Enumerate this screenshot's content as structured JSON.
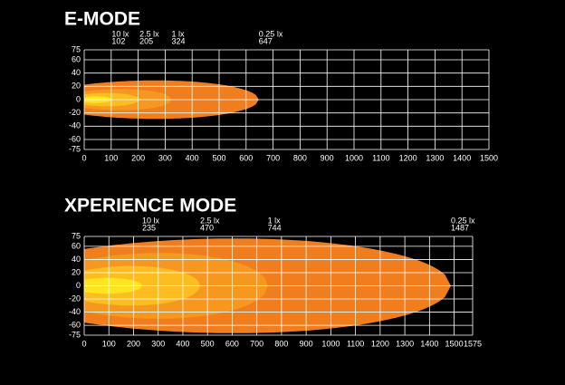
{
  "chart_data": [
    {
      "type": "area",
      "title": "E-MODE",
      "xlim": [
        0,
        1500
      ],
      "xticks": [
        0,
        100,
        200,
        300,
        400,
        500,
        600,
        700,
        800,
        900,
        1000,
        1100,
        1200,
        1300,
        1400,
        1500
      ],
      "ylim": [
        -75,
        75
      ],
      "yticks": [
        75,
        60,
        40,
        20,
        0,
        -20,
        -40,
        -60,
        -75
      ],
      "grid": true,
      "contours": [
        {
          "name": "0.25 lx",
          "reach": 647,
          "halfwidth": 29,
          "color": "#f07d1e"
        },
        {
          "name": "1 lx",
          "reach": 324,
          "halfwidth": 16,
          "color": "#f6981f"
        },
        {
          "name": "2.5 lx",
          "reach": 205,
          "halfwidth": 10,
          "color": "#fbbd20"
        },
        {
          "name": "10 lx",
          "reach": 102,
          "halfwidth": 5,
          "color": "#ffe51e"
        }
      ]
    },
    {
      "type": "area",
      "title": "XPERIENCE MODE",
      "xlim": [
        0,
        1575
      ],
      "xticks": [
        0,
        100,
        200,
        300,
        400,
        500,
        600,
        700,
        800,
        900,
        1000,
        1100,
        1200,
        1300,
        1400,
        1500,
        1575
      ],
      "ylim": [
        -75,
        75
      ],
      "yticks": [
        75,
        60,
        40,
        20,
        0,
        -20,
        -40,
        -60,
        -75
      ],
      "grid": true,
      "contours": [
        {
          "name": "0.25 lx",
          "reach": 1487,
          "halfwidth": 72,
          "color": "#f07d1e"
        },
        {
          "name": "1 lx",
          "reach": 744,
          "halfwidth": 50,
          "color": "#f6981f"
        },
        {
          "name": "2.5 lx",
          "reach": 470,
          "halfwidth": 30,
          "color": "#fbbd20"
        },
        {
          "name": "10 lx",
          "reach": 235,
          "halfwidth": 12,
          "color": "#ffe51e"
        }
      ]
    }
  ]
}
